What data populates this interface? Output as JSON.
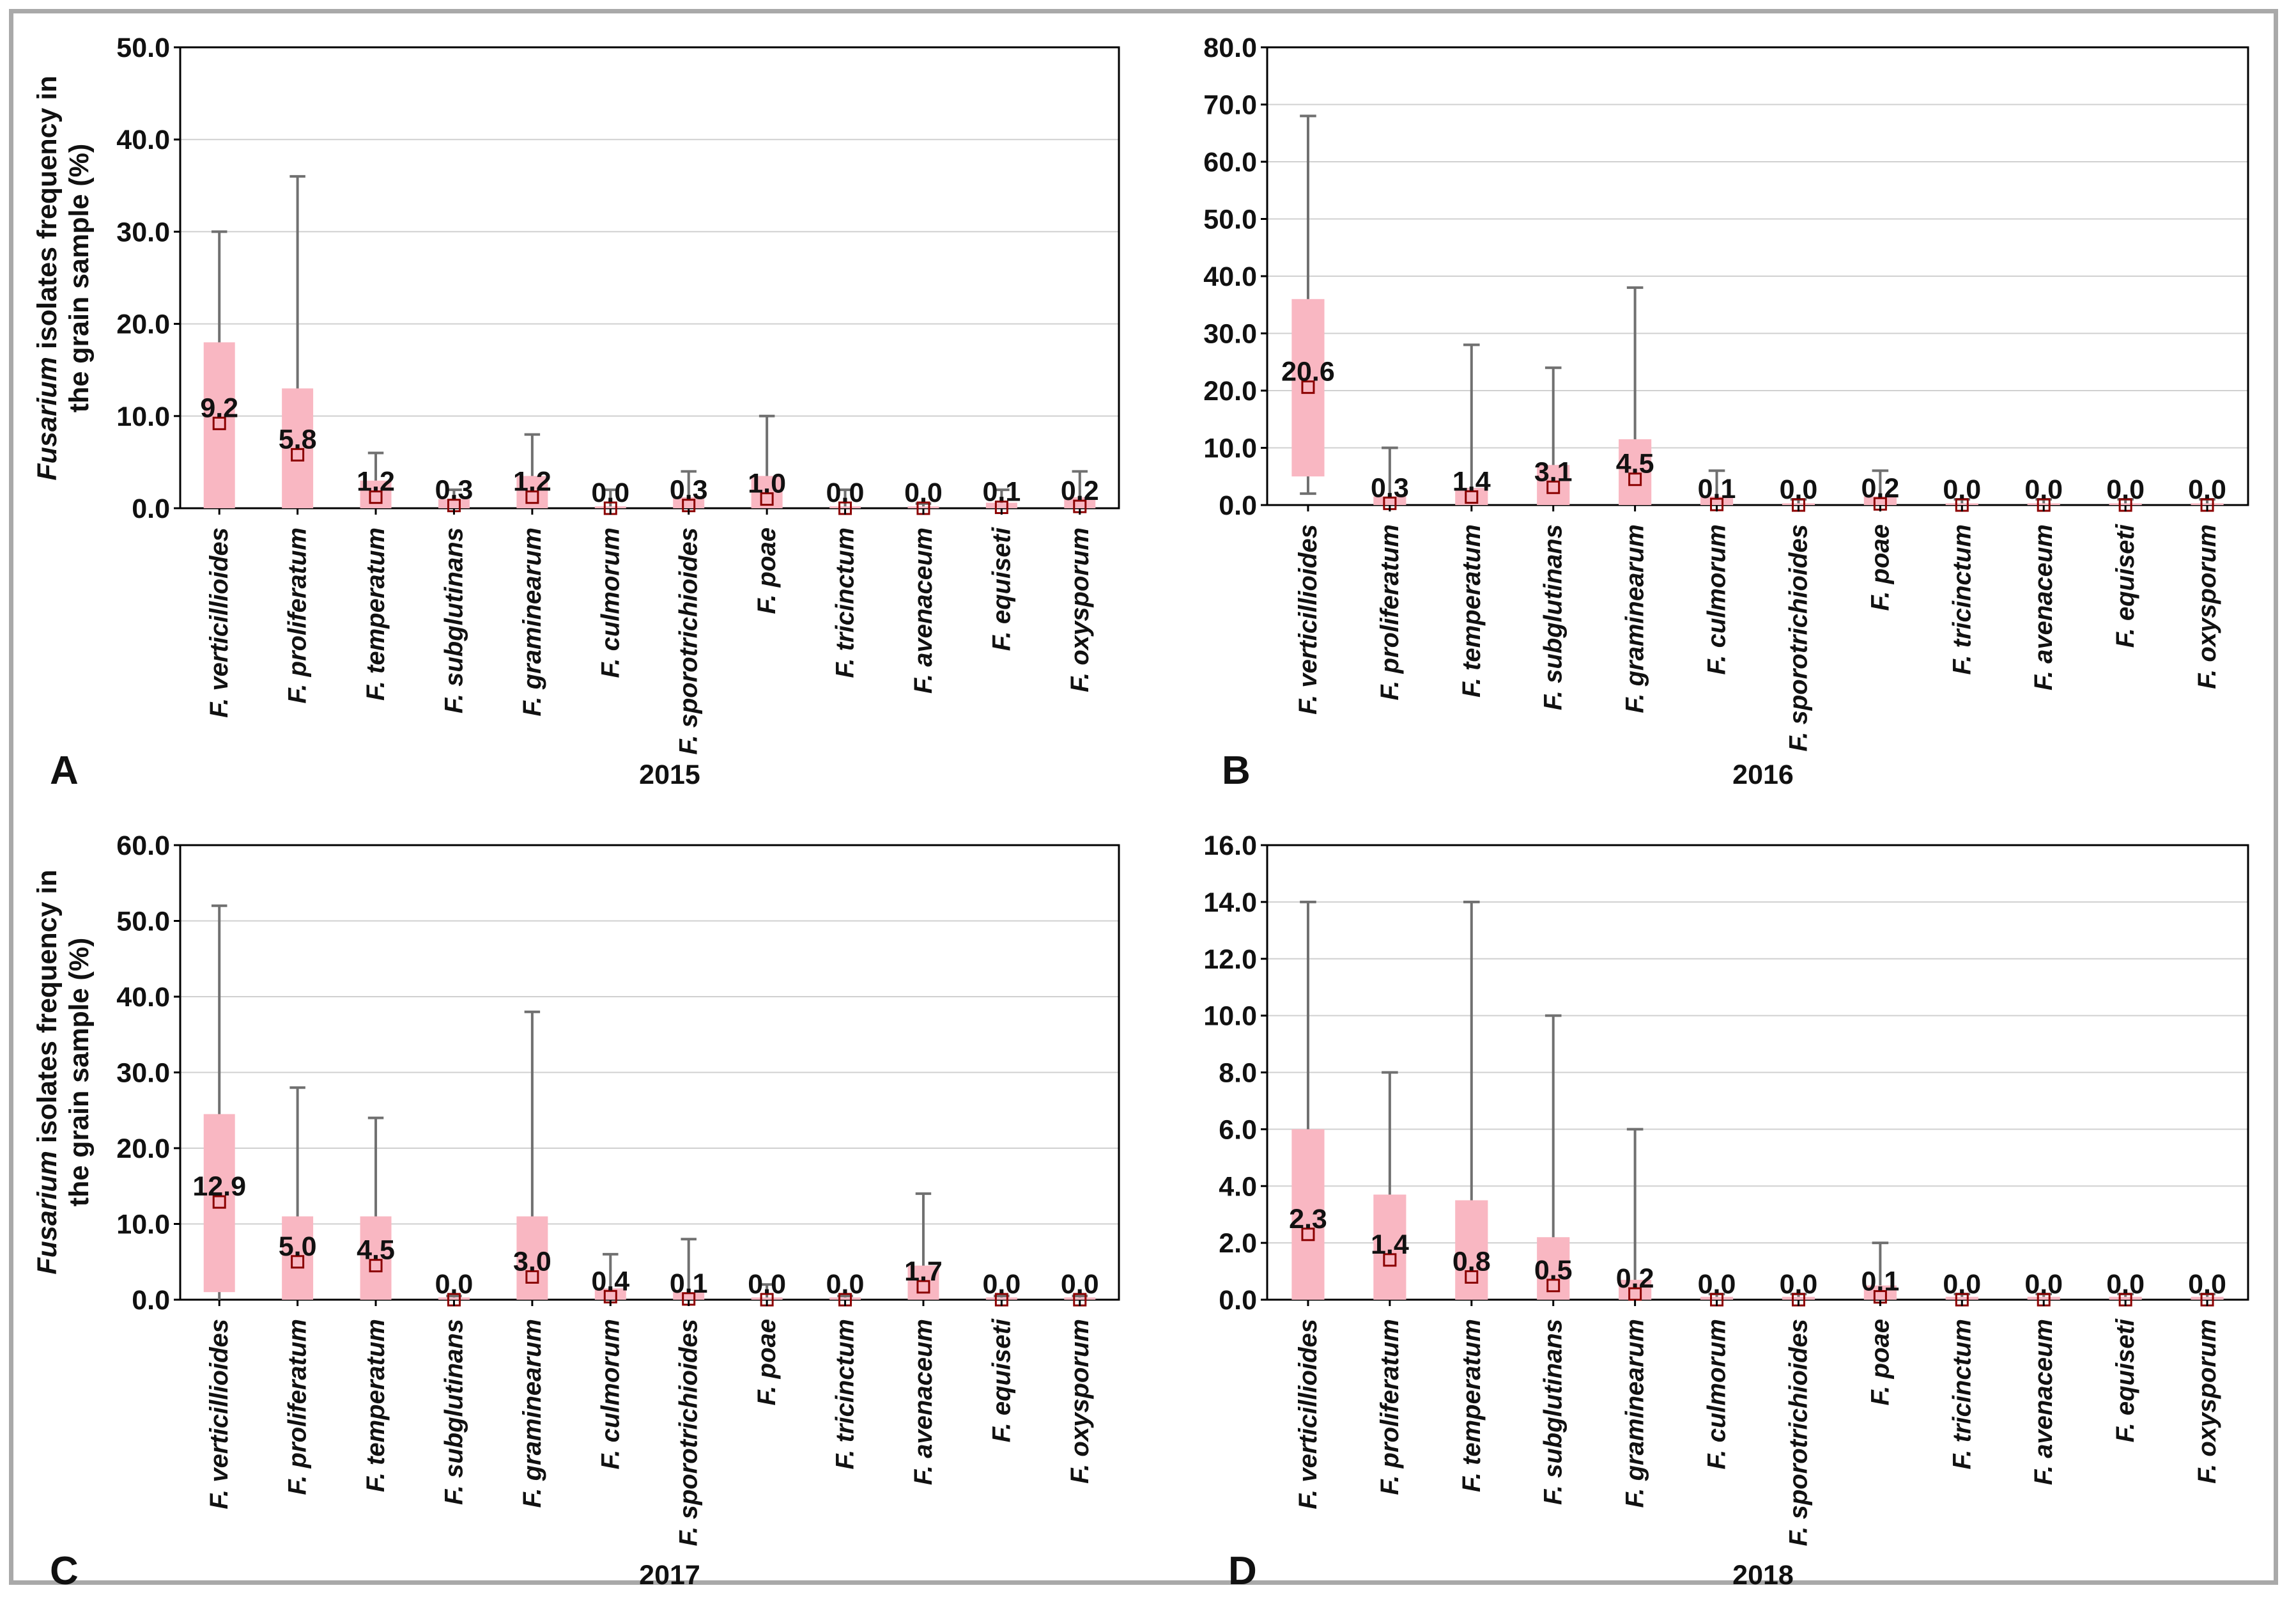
{
  "colors": {
    "box": "#f9b7c2",
    "whisker": "#707070",
    "grid": "#d0d0d0",
    "marker": "#8b0000"
  },
  "ylabel": {
    "italic": "Fusarium",
    "rest": " isolates frequency in",
    "line2": "the grain sample (%)"
  },
  "chart_data": [
    {
      "type": "box",
      "panel": "A",
      "xlabel": "2015",
      "ylabel": "Fusarium isolates frequency in the grain sample (%)",
      "ylim": [
        0,
        50
      ],
      "yticks": [
        "0.0",
        "10.0",
        "20.0",
        "30.0",
        "40.0",
        "50.0"
      ],
      "categories": [
        "F. verticillioides",
        "F. proliferatum",
        "F. temperatum",
        "F. subglutinans",
        "F. graminearum",
        "F. culmorum",
        "F. sporotrichioides",
        "F. poae",
        "F. tricinctum",
        "F. avenaceum",
        "F. equiseti",
        "F. oxysporum"
      ],
      "means": [
        9.2,
        5.8,
        1.2,
        0.3,
        1.2,
        0.0,
        0.3,
        1.0,
        0.0,
        0.0,
        0.1,
        0.2
      ],
      "labels": [
        "9.2",
        "5.8",
        "1.2",
        "0.3",
        "1.2",
        "0.0",
        "0.3",
        "1.0",
        "0.0",
        "0.0",
        "0.1",
        "0.2"
      ],
      "box_low": [
        0,
        0,
        0,
        0,
        0,
        0,
        0,
        0,
        0,
        0,
        0,
        0
      ],
      "box_high": [
        18,
        13,
        3,
        1,
        3.5,
        0.2,
        1.2,
        3.5,
        0.2,
        0.2,
        0.6,
        1.2
      ],
      "whisker_low": [
        0,
        0,
        0,
        0,
        0,
        0,
        0,
        0,
        0,
        0,
        0,
        0
      ],
      "whisker_high": [
        30,
        36,
        6,
        2,
        8,
        2,
        4,
        10,
        2,
        0.5,
        2,
        4
      ]
    },
    {
      "type": "box",
      "panel": "B",
      "xlabel": "2016",
      "ylabel": "",
      "ylim": [
        0,
        80
      ],
      "yticks": [
        "0.0",
        "10.0",
        "20.0",
        "30.0",
        "40.0",
        "50.0",
        "60.0",
        "70.0",
        "80.0"
      ],
      "categories": [
        "F. verticillioides",
        "F. proliferatum",
        "F. temperatum",
        "F. subglutinans",
        "F. graminearum",
        "F. culmorum",
        "F. sporotrichioides",
        "F. poae",
        "F. tricinctum",
        "F. avenaceum",
        "F. equiseti",
        "F. oxysporum"
      ],
      "means": [
        20.6,
        0.3,
        1.4,
        3.1,
        4.5,
        0.1,
        0.0,
        0.2,
        0.0,
        0.0,
        0.0,
        0.0
      ],
      "labels": [
        "20.6",
        "0.3",
        "1.4",
        "3.1",
        "4.5",
        "0.1",
        "0.0",
        "0.2",
        "0.0",
        "0.0",
        "0.0",
        "0.0"
      ],
      "box_low": [
        5,
        0,
        0,
        0,
        0,
        0,
        0,
        0,
        0,
        0,
        0,
        0
      ],
      "box_high": [
        36,
        1.5,
        3,
        7,
        11.5,
        1.5,
        0.3,
        1.5,
        0.3,
        0.3,
        0.3,
        0.3
      ],
      "whisker_low": [
        2,
        0,
        0,
        0,
        0,
        0,
        0,
        0,
        0,
        0,
        0,
        0
      ],
      "whisker_high": [
        68,
        10,
        28,
        24,
        38,
        6,
        1,
        6,
        1,
        1,
        1,
        1
      ]
    },
    {
      "type": "box",
      "panel": "C",
      "xlabel": "2017",
      "ylabel": "Fusarium isolates frequency in the grain sample (%)",
      "ylim": [
        0,
        60
      ],
      "yticks": [
        "0.0",
        "10.0",
        "20.0",
        "30.0",
        "40.0",
        "50.0",
        "60.0"
      ],
      "categories": [
        "F. verticillioides",
        "F. proliferatum",
        "F. temperatum",
        "F. subglutinans",
        "F. graminearum",
        "F. culmorum",
        "F. sporotrichioides",
        "F. poae",
        "F. tricinctum",
        "F. avenaceum",
        "F. equiseti",
        "F. oxysporum"
      ],
      "means": [
        12.9,
        5.0,
        4.5,
        0.0,
        3.0,
        0.4,
        0.1,
        0.0,
        0.0,
        1.7,
        0.0,
        0.0
      ],
      "labels": [
        "12.9",
        "5.0",
        "4.5",
        "0.0",
        "3.0",
        "0.4",
        "0.1",
        "0.0",
        "0.0",
        "1.7",
        "0.0",
        "0.0"
      ],
      "box_low": [
        1,
        0,
        0,
        0,
        0,
        0,
        0,
        0,
        0,
        0,
        0,
        0
      ],
      "box_high": [
        24.5,
        11,
        11,
        0.3,
        11,
        1.5,
        1,
        0.3,
        0.3,
        4.5,
        0.3,
        0.3
      ],
      "whisker_low": [
        0,
        0,
        0,
        0,
        0,
        0,
        0,
        0,
        0,
        0,
        0,
        0
      ],
      "whisker_high": [
        52,
        28,
        24,
        0.5,
        38,
        6,
        8,
        2,
        0.5,
        14,
        0.5,
        0.5
      ]
    },
    {
      "type": "box",
      "panel": "D",
      "xlabel": "2018",
      "ylabel": "",
      "ylim": [
        0,
        16
      ],
      "yticks": [
        "0.0",
        "2.0",
        "4.0",
        "6.0",
        "8.0",
        "10.0",
        "12.0",
        "14.0",
        "16.0"
      ],
      "categories": [
        "F. verticillioides",
        "F. proliferatum",
        "F. temperatum",
        "F. subglutinans",
        "F. graminearum",
        "F. culmorum",
        "F. sporotrichioides",
        "F. poae",
        "F. tricinctum",
        "F. avenaceum",
        "F. equiseti",
        "F. oxysporum"
      ],
      "means": [
        2.3,
        1.4,
        0.8,
        0.5,
        0.2,
        0.0,
        0.0,
        0.1,
        0.0,
        0.0,
        0.0,
        0.0
      ],
      "labels": [
        "2.3",
        "1.4",
        "0.8",
        "0.5",
        "0.2",
        "0.0",
        "0.0",
        "0.1",
        "0.0",
        "0.0",
        "0.0",
        "0.0"
      ],
      "box_low": [
        0,
        0,
        0,
        0,
        0,
        0,
        0,
        0,
        0,
        0,
        0,
        0
      ],
      "box_high": [
        6,
        3.7,
        3.5,
        2.2,
        0.7,
        0.1,
        0.1,
        0.5,
        0.1,
        0.1,
        0.1,
        0.1
      ],
      "whisker_low": [
        0,
        0,
        0,
        0,
        0,
        0,
        0,
        0,
        0,
        0,
        0,
        0
      ],
      "whisker_high": [
        14,
        8,
        14,
        10,
        6,
        0.2,
        0.2,
        2,
        0.2,
        0.2,
        0.2,
        0.2
      ]
    }
  ]
}
